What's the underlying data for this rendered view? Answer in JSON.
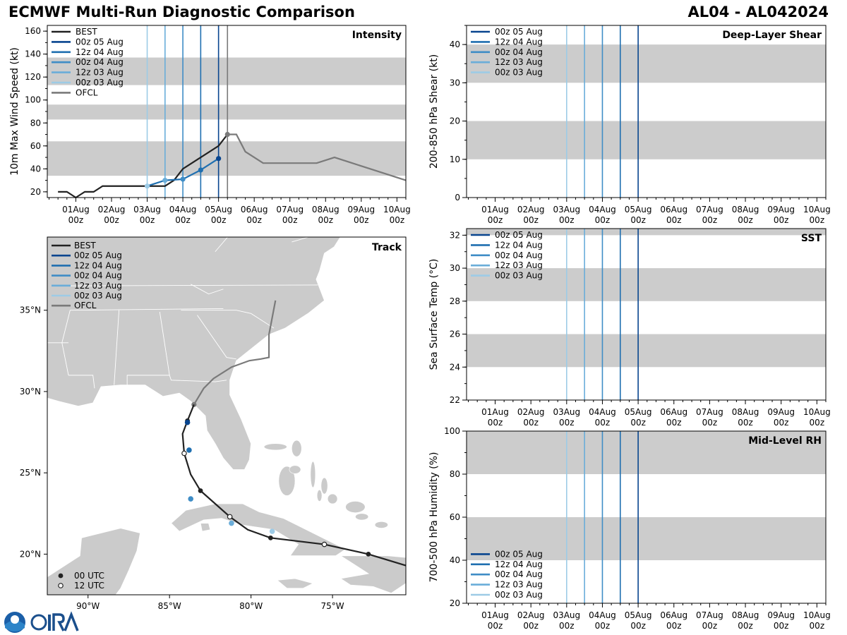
{
  "title": "ECMWF Multi-Run Diagnostic Comparison",
  "storm_id": "AL04 - AL042024",
  "colors": {
    "best": "#222222",
    "ofcl": "#7a7a7a",
    "run_00z_05": "#08458f",
    "run_12z_04": "#1f6fb0",
    "run_00z_04": "#3f8dc6",
    "run_12z_03": "#6aadd9",
    "run_00z_03": "#9dcbe6",
    "band": "#cccccc",
    "land": "#cbcbcb"
  },
  "time_axis": {
    "tick_labels": [
      "01Aug",
      "02Aug",
      "03Aug",
      "04Aug",
      "05Aug",
      "06Aug",
      "07Aug",
      "08Aug",
      "09Aug",
      "10Aug"
    ],
    "tick_sub": "00z",
    "range_days": [
      0.2,
      10.25
    ]
  },
  "legend": {
    "best": "BEST",
    "runs": [
      "00z 05 Aug",
      "12z 04 Aug",
      "00z 04 Aug",
      "12z 03 Aug",
      "00z 03 Aug"
    ],
    "ofcl": "OFCL",
    "utc00": "00 UTC",
    "utc12": "12 UTC"
  },
  "chart_data": [
    {
      "id": "intensity",
      "type": "line",
      "title": "Intensity",
      "ylabel": "10m Max Wind Speed (kt)",
      "ylim": [
        15,
        165
      ],
      "yticks": [
        20,
        40,
        60,
        80,
        100,
        120,
        140,
        160
      ],
      "bands": [
        [
          34,
          64
        ],
        [
          83,
          96
        ],
        [
          113,
          137
        ]
      ],
      "run_init_days": [
        5.0,
        4.5,
        4.0,
        3.5,
        3.0
      ],
      "ofcl_init_day": 5.25,
      "series": [
        {
          "name": "BEST",
          "x": [
            0.5,
            0.75,
            1.0,
            1.25,
            1.5,
            1.75,
            2.0,
            2.25,
            2.5,
            2.75,
            3.0,
            3.25,
            3.5,
            3.75,
            4.0,
            4.25,
            4.5,
            4.75,
            5.0,
            5.25
          ],
          "y": [
            20,
            20,
            15,
            20,
            20,
            25,
            25,
            25,
            25,
            25,
            25,
            25,
            25,
            30,
            40,
            45,
            50,
            55,
            60,
            70
          ]
        },
        {
          "name": "00z 05 Aug",
          "x": [
            3.0,
            3.5,
            4.0,
            4.5,
            5.0
          ],
          "y": [
            25,
            30,
            31,
            39,
            49
          ]
        },
        {
          "name": "OFCL",
          "x": [
            5.25,
            5.5,
            5.75,
            6.25,
            6.75,
            7.25,
            7.75,
            8.25,
            8.75,
            9.25,
            9.75,
            10.25
          ],
          "y": [
            70,
            70,
            55,
            45,
            45,
            45,
            45,
            50,
            45,
            40,
            35,
            30
          ]
        }
      ]
    },
    {
      "id": "shear",
      "type": "line",
      "title": "Deep-Layer Shear",
      "ylabel": "200-850 hPa Shear (kt)",
      "ylim": [
        0,
        45
      ],
      "yticks": [
        0,
        10,
        20,
        30,
        40
      ],
      "bands": [
        [
          10,
          20
        ],
        [
          30,
          40
        ]
      ],
      "run_init_days": [
        5.0,
        4.5,
        4.0,
        3.5,
        3.0
      ]
    },
    {
      "id": "sst",
      "type": "line",
      "title": "SST",
      "ylabel": "Sea Surface Temp (°C)",
      "ylim": [
        22,
        32.4
      ],
      "yticks": [
        22,
        24,
        26,
        28,
        30,
        32
      ],
      "bands": [
        [
          24,
          26
        ],
        [
          28,
          30
        ],
        [
          32,
          32.4
        ]
      ],
      "run_init_days": [
        5.0,
        4.5,
        4.0,
        3.5,
        3.0
      ]
    },
    {
      "id": "rh",
      "type": "line",
      "title": "Mid-Level RH",
      "ylabel": "700-500 hPa Humidity (%)",
      "ylim": [
        20,
        100
      ],
      "yticks": [
        20,
        40,
        60,
        80,
        100
      ],
      "bands": [
        [
          40,
          60
        ],
        [
          80,
          100
        ]
      ],
      "run_init_days": [
        5.0,
        4.5,
        4.0,
        3.5,
        3.0
      ]
    },
    {
      "id": "track",
      "type": "scatter",
      "title": "Track",
      "lon_range": [
        -92.5,
        -70.5
      ],
      "lat_range": [
        17.5,
        39.5
      ],
      "lon_ticks": [
        -90,
        -85,
        -80,
        -75
      ],
      "lon_tick_labels": [
        "90°W",
        "85°W",
        "80°W",
        "75°W"
      ],
      "lat_ticks": [
        20,
        25,
        30,
        35
      ],
      "lat_tick_labels": [
        "20°N",
        "25°N",
        "30°N",
        "35°N"
      ],
      "best_track": [
        [
          -70.5,
          19.3
        ],
        [
          -72.8,
          20.0
        ],
        [
          -75.5,
          20.6
        ],
        [
          -78.8,
          21.0
        ],
        [
          -80.2,
          21.5
        ],
        [
          -81.3,
          22.3
        ],
        [
          -83.1,
          23.9
        ],
        [
          -83.7,
          24.9
        ],
        [
          -84.1,
          26.2
        ],
        [
          -84.2,
          27.4
        ],
        [
          -83.9,
          28.2
        ],
        [
          -83.5,
          29.2
        ]
      ],
      "best_00utc": [
        [
          -72.8,
          20.0
        ],
        [
          -78.8,
          21.0
        ],
        [
          -83.1,
          23.9
        ],
        [
          -83.9,
          28.2
        ]
      ],
      "best_12utc": [
        [
          -75.5,
          20.6
        ],
        [
          -81.3,
          22.3
        ],
        [
          -84.1,
          26.2
        ]
      ],
      "ofcl_track": [
        [
          -83.5,
          29.2
        ],
        [
          -82.9,
          30.2
        ],
        [
          -82.3,
          30.8
        ],
        [
          -81.2,
          31.5
        ],
        [
          -80.1,
          31.9
        ],
        [
          -79.4,
          32.0
        ],
        [
          -78.9,
          32.1
        ],
        [
          -78.9,
          33.5
        ],
        [
          -78.5,
          35.6
        ]
      ],
      "ofcl_points": [
        [
          -83.5,
          29.2
        ]
      ],
      "run_positions": [
        {
          "run": "00z 05 Aug",
          "lon": -83.9,
          "lat": 28.1
        },
        {
          "run": "12z 04 Aug",
          "lon": -83.8,
          "lat": 26.4
        },
        {
          "run": "00z 04 Aug",
          "lon": -83.7,
          "lat": 23.4
        },
        {
          "run": "12z 03 Aug",
          "lon": -81.2,
          "lat": 21.9
        },
        {
          "run": "00z 03 Aug",
          "lon": -78.7,
          "lat": 21.4
        }
      ]
    }
  ]
}
